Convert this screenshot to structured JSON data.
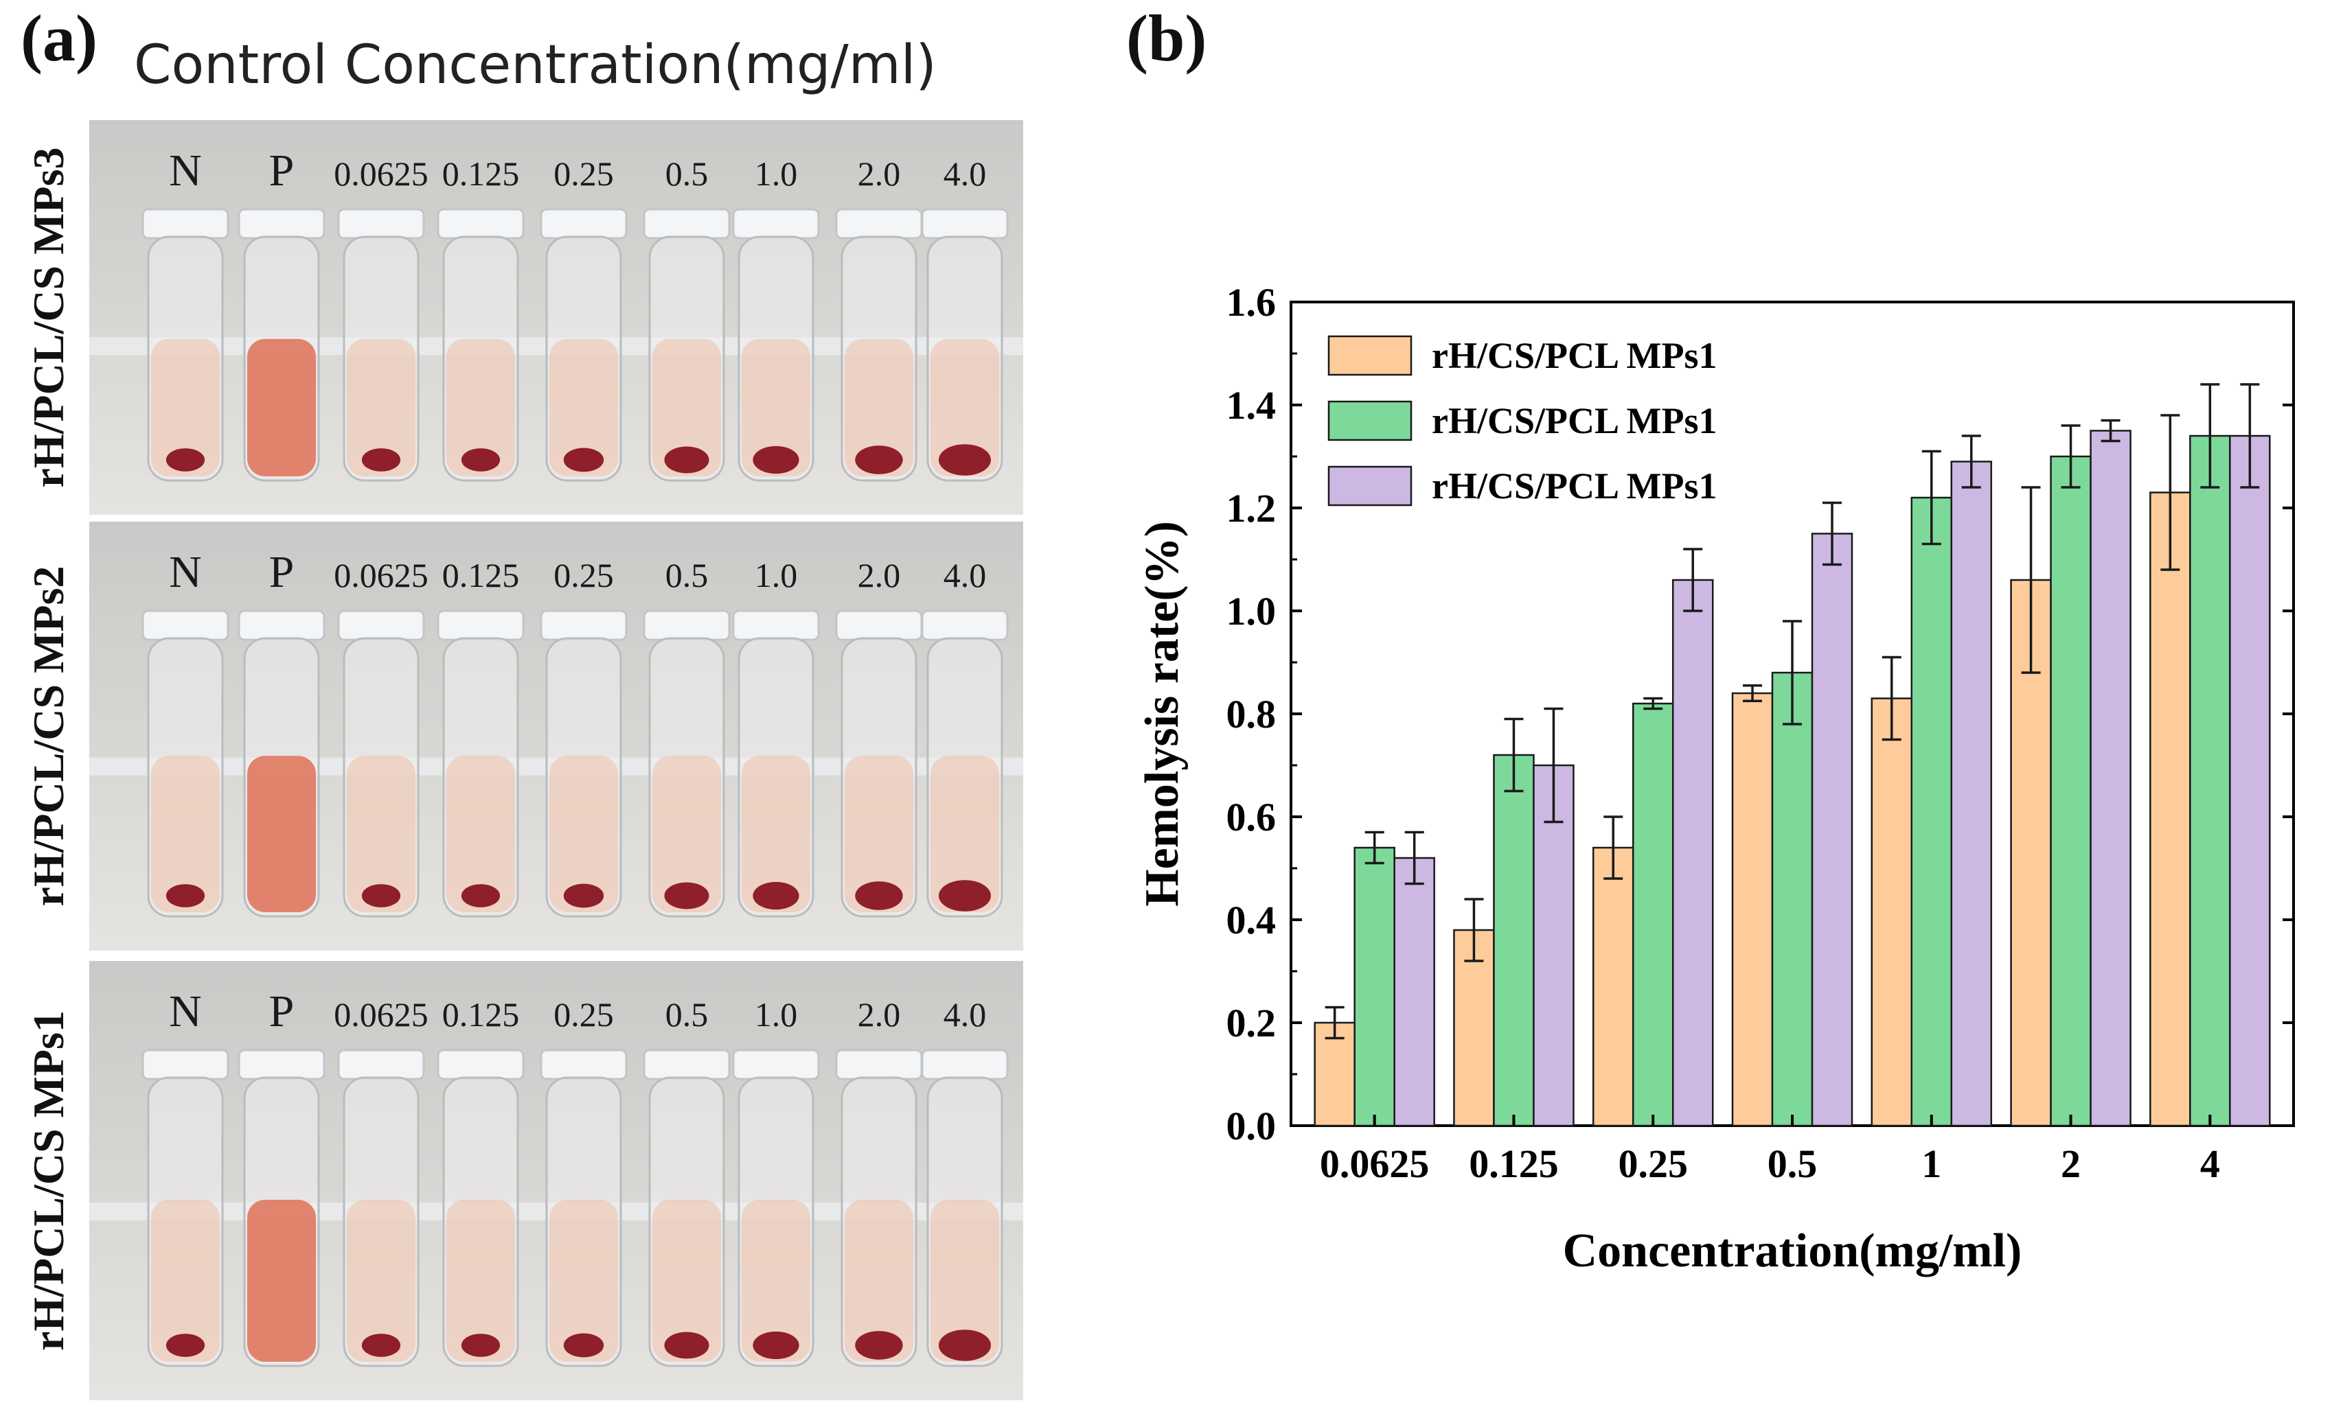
{
  "figure": {
    "panel_a_label": "(a)",
    "panel_b_label": "(b)"
  },
  "photo": {
    "header": "Control Concentration(mg/ml)",
    "tube_labels": [
      "N",
      "P",
      "0.0625",
      "0.125",
      "0.25",
      "0.5",
      "1.0",
      "2.0",
      "4.0"
    ],
    "rows": [
      {
        "name": "rH/PCL/CS MPs3",
        "tube_labels": [
          "N",
          "P",
          "0.0625",
          "0.125",
          "0.25",
          "0.5",
          "1.0",
          "2.0",
          "4.0"
        ]
      },
      {
        "name": "rH/PCL/CS MPs2",
        "tube_labels": [
          "N",
          "P",
          "0.0625",
          "0.125",
          "0.25",
          "0.5",
          "1.0",
          "2.0",
          "4.0"
        ]
      },
      {
        "name": "rH/PCL/CS MPs1",
        "tube_labels": [
          "N",
          "P",
          "0.0625",
          "0.125",
          "0.25",
          "0.5",
          "1.0",
          "2.0",
          "4.0"
        ]
      }
    ],
    "sediment_level": [
      0.55,
      0.0,
      0.55,
      0.55,
      0.6,
      0.75,
      0.8,
      0.85,
      1.0
    ]
  },
  "chart_data": {
    "type": "bar",
    "title": "",
    "xlabel": "Concentration(mg/ml)",
    "ylabel": "Hemolysis rate(%)",
    "ylim": [
      0,
      1.6
    ],
    "yticks": [
      "0.0",
      "0.2",
      "0.4",
      "0.6",
      "0.8",
      "1.0",
      "1.2",
      "1.4",
      "1.6"
    ],
    "categories": [
      "0.0625",
      "0.125",
      "0.25",
      "0.5",
      "1",
      "2",
      "4"
    ],
    "series": [
      {
        "name": "rH/CS/PCL MPs1",
        "color": "#FDCC9A",
        "values": [
          0.2,
          0.38,
          0.54,
          0.84,
          0.83,
          1.06,
          1.23
        ],
        "errors": [
          0.03,
          0.06,
          0.06,
          0.015,
          0.08,
          0.18,
          0.15
        ]
      },
      {
        "name": "rH/CS/PCL MPs1",
        "color": "#7DD99A",
        "values": [
          0.54,
          0.72,
          0.82,
          0.88,
          1.22,
          1.3,
          1.34
        ],
        "errors": [
          0.03,
          0.07,
          0.01,
          0.1,
          0.09,
          0.06,
          0.1
        ]
      },
      {
        "name": "rH/CS/PCL MPs1",
        "color": "#CDB8E3",
        "values": [
          0.52,
          0.7,
          1.06,
          1.15,
          1.29,
          1.35,
          1.34
        ],
        "errors": [
          0.05,
          0.11,
          0.06,
          0.06,
          0.05,
          0.02,
          0.1
        ]
      }
    ],
    "legend_position": "top-left",
    "grid": false
  }
}
